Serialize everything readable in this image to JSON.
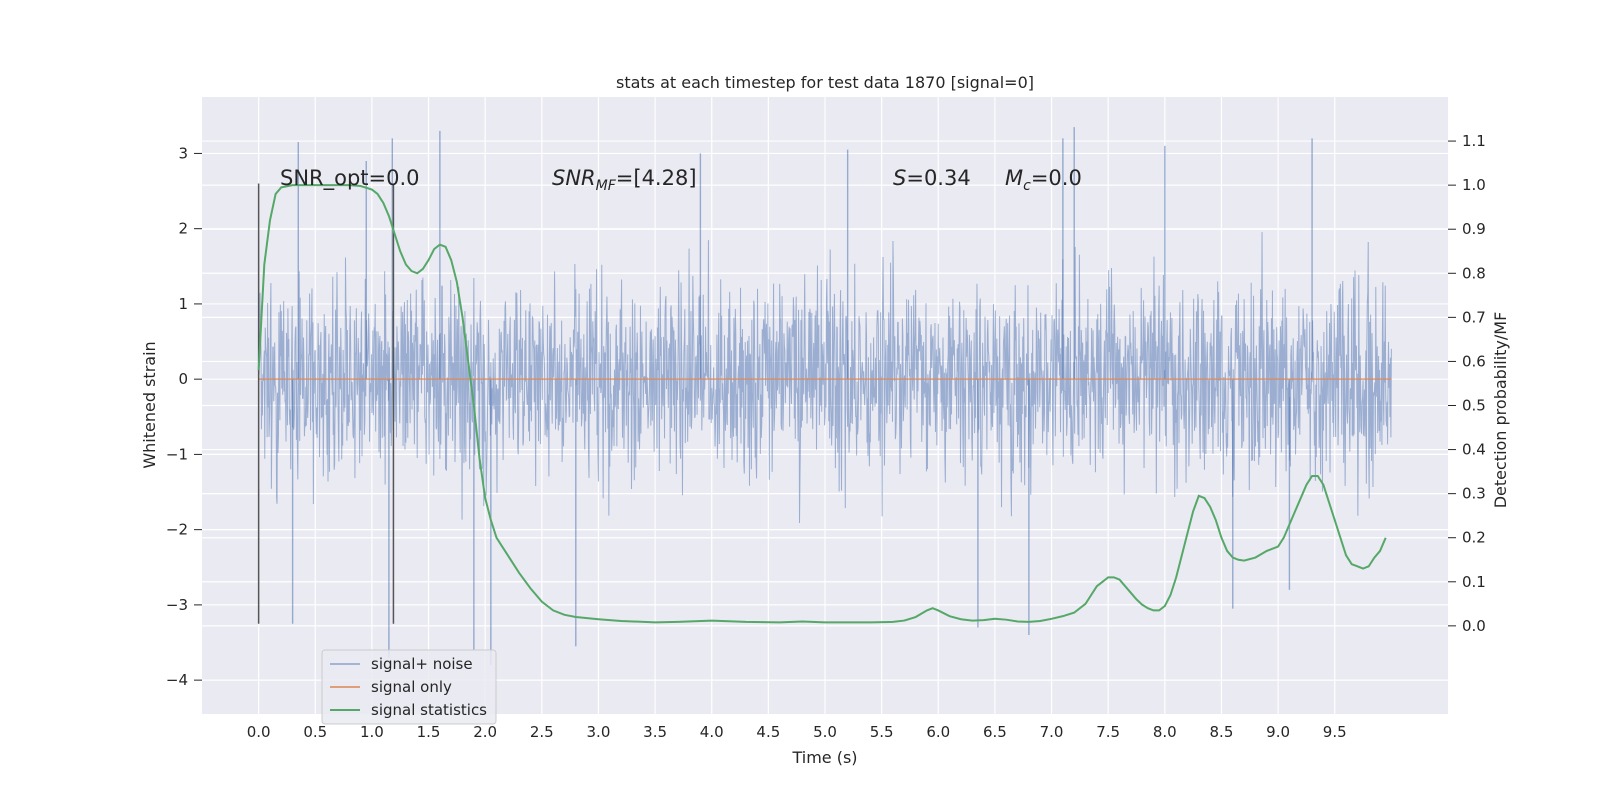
{
  "chart_data": {
    "type": "line",
    "title": "stats at each timestep for test data 1870 [signal=0]",
    "xlabel": "Time (s)",
    "ylabel": "Whitened strain",
    "y2label": "Detection probability/MF",
    "xlim": [
      -0.5,
      10.5
    ],
    "ylim": [
      -4.45,
      3.75
    ],
    "y2lim": [
      -0.2,
      1.2
    ],
    "x_ticks": [
      0.0,
      0.5,
      1.0,
      1.5,
      2.0,
      2.5,
      3.0,
      3.5,
      4.0,
      4.5,
      5.0,
      5.5,
      6.0,
      6.5,
      7.0,
      7.5,
      8.0,
      8.5,
      9.0,
      9.5
    ],
    "x_tick_labels": [
      "0.0",
      "0.5",
      "1.0",
      "1.5",
      "2.0",
      "2.5",
      "3.0",
      "3.5",
      "4.0",
      "4.5",
      "5.0",
      "5.5",
      "6.0",
      "6.5",
      "7.0",
      "7.5",
      "8.0",
      "8.5",
      "9.0",
      "9.5"
    ],
    "y_ticks": [
      3,
      2,
      1,
      0,
      -1,
      -2,
      -3,
      -4
    ],
    "y_tick_labels": [
      "3",
      "2",
      "1",
      "0",
      "−1",
      "−2",
      "−3",
      "−4"
    ],
    "y2_ticks": [
      1.1,
      1.0,
      0.9,
      0.8,
      0.7,
      0.6,
      0.5,
      0.4,
      0.3,
      0.2,
      0.1,
      0.0
    ],
    "y2_tick_labels": [
      "1.1",
      "1.0",
      "0.9",
      "0.8",
      "0.7",
      "0.6",
      "0.5",
      "0.4",
      "0.3",
      "0.2",
      "0.1",
      "0.0"
    ],
    "grid": true,
    "legend_position": "lower-left",
    "annotations": {
      "snr_opt": "SNR_opt=0.0",
      "snr_mf_base": "SNR",
      "snr_mf_sub": "MF",
      "snr_mf_value": "=[4.28]",
      "s_base": "S",
      "s_value": "=0.34",
      "mc_base": "M",
      "mc_sub": "c",
      "mc_value": "=0.0"
    },
    "vertical_markers": [
      {
        "x": 0.0,
        "ymin": -3.25,
        "ymax": 2.6
      },
      {
        "x": 1.19,
        "ymin": -3.25,
        "ymax": 2.6
      }
    ],
    "series": [
      {
        "name": "signal+ noise",
        "color": "#4c72b0",
        "style": "dense noise trace",
        "x_range": [
          0.0,
          10.0
        ],
        "typical_envelope": [
          -1.6,
          1.6
        ],
        "spikes": [
          {
            "x": 0.35,
            "y": 3.15
          },
          {
            "x": 0.95,
            "y": 2.9
          },
          {
            "x": 1.18,
            "y": 3.2
          },
          {
            "x": 1.6,
            "y": 3.3
          },
          {
            "x": 3.9,
            "y": 3.0
          },
          {
            "x": 5.2,
            "y": 3.05
          },
          {
            "x": 7.1,
            "y": 3.2
          },
          {
            "x": 7.2,
            "y": 3.35
          },
          {
            "x": 8.0,
            "y": 3.1
          },
          {
            "x": 9.3,
            "y": 3.2
          },
          {
            "x": 0.3,
            "y": -3.25
          },
          {
            "x": 1.15,
            "y": -3.7
          },
          {
            "x": 1.9,
            "y": -3.6
          },
          {
            "x": 2.05,
            "y": -3.8
          },
          {
            "x": 2.8,
            "y": -3.55
          },
          {
            "x": 6.35,
            "y": -3.3
          },
          {
            "x": 6.8,
            "y": -3.4
          },
          {
            "x": 8.6,
            "y": -3.05
          },
          {
            "x": 9.1,
            "y": -2.8
          }
        ]
      },
      {
        "name": "signal only",
        "color": "#dd8452",
        "x": [
          0.0,
          10.0
        ],
        "y": [
          0.0,
          0.0
        ]
      },
      {
        "name": "signal statistics",
        "color": "#55a868",
        "axis": "right",
        "x": [
          0.0,
          0.05,
          0.1,
          0.15,
          0.2,
          0.3,
          0.4,
          0.5,
          0.6,
          0.7,
          0.8,
          0.9,
          1.0,
          1.05,
          1.1,
          1.15,
          1.2,
          1.25,
          1.3,
          1.35,
          1.4,
          1.45,
          1.5,
          1.55,
          1.6,
          1.65,
          1.7,
          1.75,
          1.8,
          1.85,
          1.9,
          1.95,
          2.0,
          2.05,
          2.1,
          2.15,
          2.2,
          2.3,
          2.4,
          2.5,
          2.6,
          2.7,
          2.8,
          3.0,
          3.2,
          3.5,
          3.7,
          4.0,
          4.3,
          4.6,
          4.8,
          5.0,
          5.2,
          5.4,
          5.6,
          5.7,
          5.8,
          5.9,
          5.95,
          6.0,
          6.1,
          6.2,
          6.3,
          6.4,
          6.5,
          6.6,
          6.7,
          6.8,
          6.9,
          7.0,
          7.1,
          7.2,
          7.3,
          7.35,
          7.4,
          7.45,
          7.5,
          7.55,
          7.6,
          7.65,
          7.7,
          7.75,
          7.8,
          7.85,
          7.9,
          7.95,
          8.0,
          8.05,
          8.1,
          8.15,
          8.2,
          8.25,
          8.3,
          8.35,
          8.4,
          8.45,
          8.5,
          8.55,
          8.6,
          8.65,
          8.7,
          8.8,
          8.9,
          9.0,
          9.05,
          9.1,
          9.15,
          9.2,
          9.25,
          9.3,
          9.35,
          9.4,
          9.45,
          9.5,
          9.55,
          9.6,
          9.65,
          9.7,
          9.75,
          9.8,
          9.85,
          9.9,
          9.95
        ],
        "y": [
          0.58,
          0.82,
          0.92,
          0.98,
          0.995,
          1.0,
          1.0,
          1.0,
          1.0,
          1.0,
          1.0,
          0.998,
          0.99,
          0.98,
          0.96,
          0.93,
          0.89,
          0.85,
          0.82,
          0.805,
          0.8,
          0.81,
          0.83,
          0.855,
          0.865,
          0.86,
          0.83,
          0.78,
          0.7,
          0.6,
          0.5,
          0.38,
          0.29,
          0.24,
          0.2,
          0.18,
          0.16,
          0.12,
          0.085,
          0.055,
          0.035,
          0.025,
          0.02,
          0.015,
          0.011,
          0.008,
          0.009,
          0.012,
          0.009,
          0.008,
          0.01,
          0.008,
          0.008,
          0.008,
          0.009,
          0.012,
          0.02,
          0.035,
          0.04,
          0.035,
          0.022,
          0.015,
          0.012,
          0.013,
          0.016,
          0.014,
          0.01,
          0.009,
          0.011,
          0.016,
          0.022,
          0.03,
          0.05,
          0.07,
          0.09,
          0.1,
          0.11,
          0.11,
          0.105,
          0.09,
          0.075,
          0.06,
          0.048,
          0.04,
          0.035,
          0.035,
          0.045,
          0.07,
          0.11,
          0.16,
          0.21,
          0.26,
          0.295,
          0.29,
          0.27,
          0.24,
          0.2,
          0.17,
          0.155,
          0.15,
          0.148,
          0.155,
          0.17,
          0.18,
          0.2,
          0.23,
          0.26,
          0.29,
          0.32,
          0.34,
          0.34,
          0.32,
          0.28,
          0.24,
          0.2,
          0.16,
          0.14,
          0.135,
          0.13,
          0.135,
          0.155,
          0.17,
          0.2
        ]
      }
    ]
  }
}
